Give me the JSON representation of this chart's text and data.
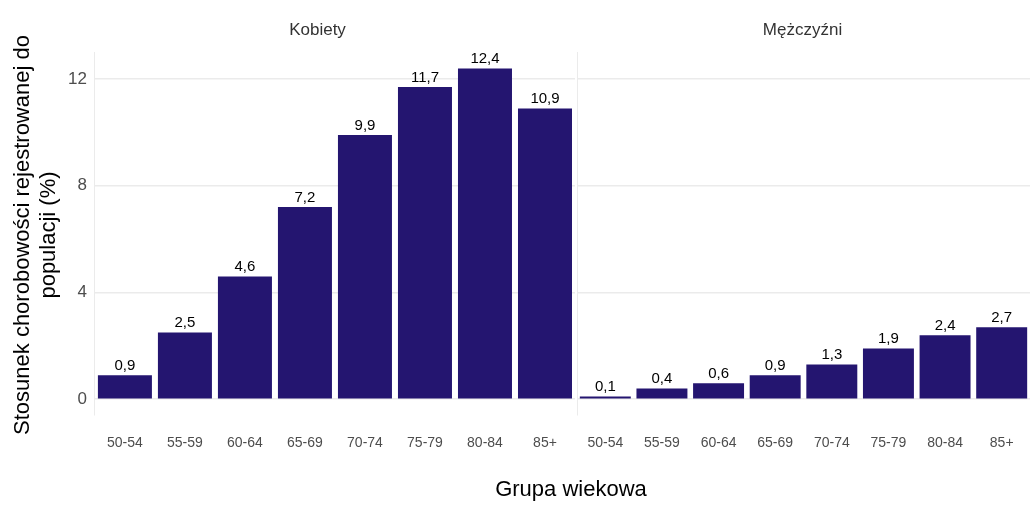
{
  "chart_data": [
    {
      "type": "bar",
      "title": "Kobiety",
      "xlabel": "Grupa wiekowa",
      "ylabel": "Stosunek chorobowości rejestrowanej do populacji (%)",
      "categories": [
        "50-54",
        "55-59",
        "60-64",
        "65-69",
        "70-74",
        "75-79",
        "80-84",
        "85+"
      ],
      "values": [
        0.9,
        2.5,
        4.6,
        7.2,
        9.9,
        11.7,
        12.4,
        10.9
      ],
      "value_labels": [
        "0,9",
        "2,5",
        "4,6",
        "7,2",
        "9,9",
        "11,7",
        "12,4",
        "10,9"
      ],
      "color": "#241570",
      "ylim": [
        -0.6,
        13
      ],
      "yticks": [
        0,
        4,
        8,
        12
      ],
      "grid": "y"
    },
    {
      "type": "bar",
      "title": "Mężczyźni",
      "categories": [
        "50-54",
        "55-59",
        "60-64",
        "65-69",
        "70-74",
        "75-79",
        "80-84",
        "85+"
      ],
      "values": [
        0.1,
        0.4,
        0.6,
        0.9,
        1.3,
        1.9,
        2.4,
        2.7
      ],
      "value_labels": [
        "0,1",
        "0,4",
        "0,6",
        "0,9",
        "1,3",
        "1,9",
        "2,4",
        "2,7"
      ],
      "color": "#241570",
      "ylim": [
        -0.6,
        13
      ],
      "yticks": [
        0,
        4,
        8,
        12
      ],
      "grid": "y",
      "tick_labels": "x"
    }
  ]
}
